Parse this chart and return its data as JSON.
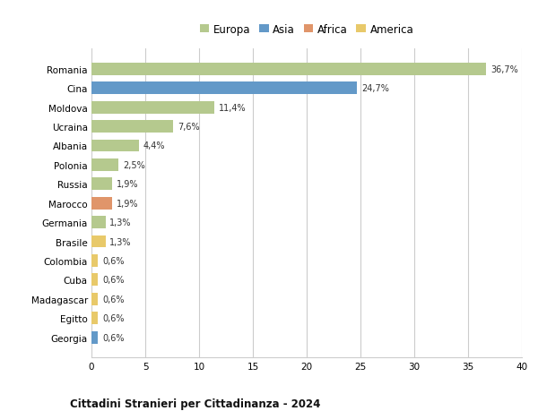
{
  "countries": [
    "Romania",
    "Cina",
    "Moldova",
    "Ucraina",
    "Albania",
    "Polonia",
    "Russia",
    "Marocco",
    "Germania",
    "Brasile",
    "Colombia",
    "Cuba",
    "Madagascar",
    "Egitto",
    "Georgia"
  ],
  "values": [
    36.7,
    24.7,
    11.4,
    7.6,
    4.4,
    2.5,
    1.9,
    1.9,
    1.3,
    1.3,
    0.6,
    0.6,
    0.6,
    0.6,
    0.6
  ],
  "labels": [
    "36,7%",
    "24,7%",
    "11,4%",
    "7,6%",
    "4,4%",
    "2,5%",
    "1,9%",
    "1,9%",
    "1,3%",
    "1,3%",
    "0,6%",
    "0,6%",
    "0,6%",
    "0,6%",
    "0,6%"
  ],
  "colors": [
    "#b5c98e",
    "#6399c8",
    "#b5c98e",
    "#b5c98e",
    "#b5c98e",
    "#b5c98e",
    "#b5c98e",
    "#e0956a",
    "#b5c98e",
    "#e8c96a",
    "#e8c96a",
    "#e8c96a",
    "#e8c96a",
    "#e8c96a",
    "#6399c8"
  ],
  "legend_labels": [
    "Europa",
    "Asia",
    "Africa",
    "America"
  ],
  "legend_colors": [
    "#b5c98e",
    "#6399c8",
    "#e0956a",
    "#e8c96a"
  ],
  "title": "Cittadini Stranieri per Cittadinanza - 2024",
  "xlim": [
    0,
    40
  ],
  "xticks": [
    0,
    5,
    10,
    15,
    20,
    25,
    30,
    35,
    40
  ],
  "background_color": "#ffffff",
  "grid_color": "#cccccc"
}
